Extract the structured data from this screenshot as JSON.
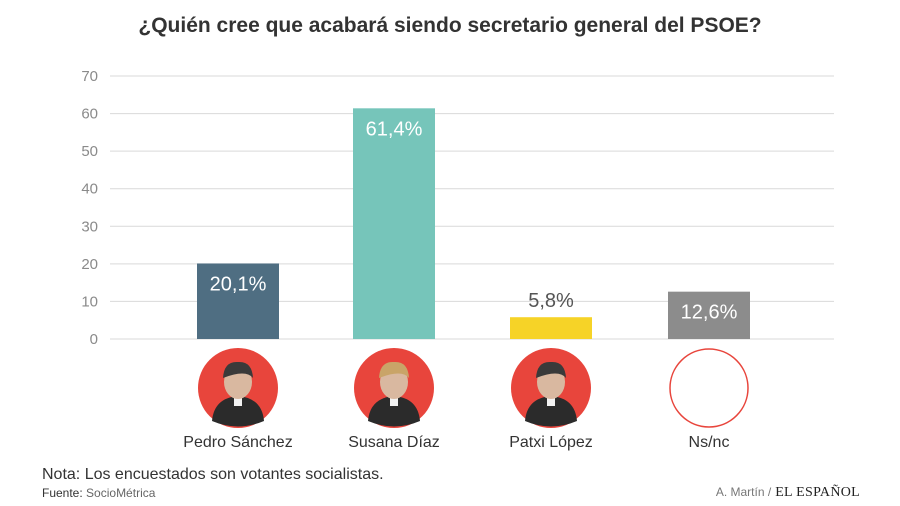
{
  "header": {
    "title": "¿Quién cree que acabará siendo secretario general del PSOE?"
  },
  "chart_data": {
    "type": "bar",
    "categories": [
      "Pedro Sánchez",
      "Susana Díaz",
      "Patxi López",
      "Ns/nc"
    ],
    "values": [
      20.1,
      61.4,
      5.8,
      12.6
    ],
    "value_labels": [
      "20,1%",
      "61,4%",
      "5,8%",
      "12,6%"
    ],
    "colors": [
      "#4f6e82",
      "#76c5ba",
      "#f6d327",
      "#8c8c8c"
    ],
    "ylim": [
      0,
      70
    ],
    "yticks": [
      0,
      10,
      20,
      30,
      40,
      50,
      60,
      70
    ],
    "grid": true,
    "xlabel": "",
    "ylabel": ""
  },
  "portraits": [
    {
      "icon": "person-portrait-icon",
      "bg": "#e8453c",
      "filled": true
    },
    {
      "icon": "person-portrait-icon",
      "bg": "#e8453c",
      "filled": true
    },
    {
      "icon": "person-portrait-icon",
      "bg": "#e8453c",
      "filled": true
    },
    {
      "icon": "empty-circle-icon",
      "bg": "#ffffff",
      "filled": false
    }
  ],
  "footer": {
    "note": "Nota: Los encuestados son votantes socialistas.",
    "source_label": "Fuente:",
    "source_value": "SocioMétrica",
    "author": "A. Martín /",
    "brand": "EL ESPAÑOL"
  }
}
